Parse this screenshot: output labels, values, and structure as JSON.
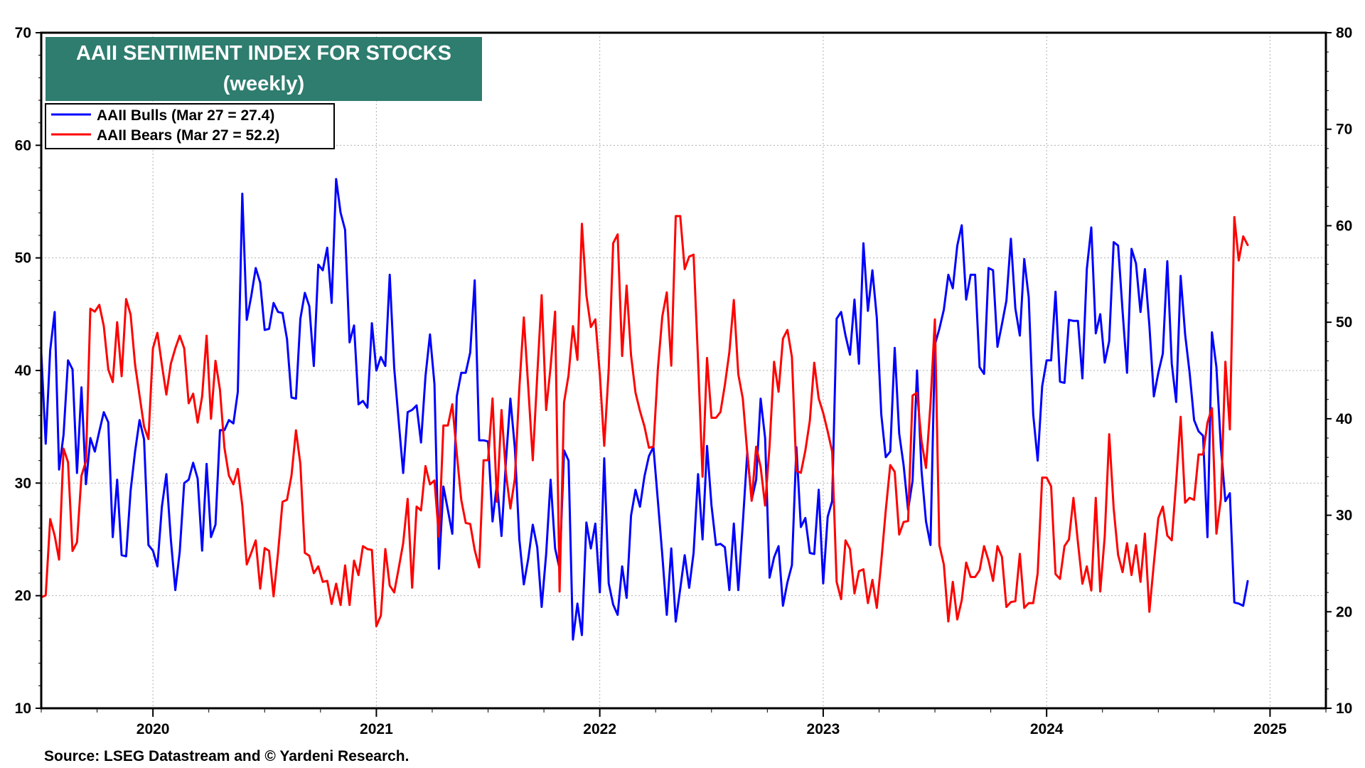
{
  "chart_data": {
    "type": "line",
    "title": "AAII SENTIMENT INDEX FOR STOCKS",
    "subtitle": "(weekly)",
    "source": "Source: LSEG Datastream and © Yardeni Research.",
    "grid": true,
    "legend_position": "top-left",
    "x_range": [
      2019.5,
      2025.25
    ],
    "x_tick_labels": [
      "2020",
      "2021",
      "2022",
      "2023",
      "2024",
      "2025"
    ],
    "x_tick_values": [
      2020,
      2021,
      2022,
      2023,
      2024,
      2025
    ],
    "y_left": {
      "range": [
        10,
        70
      ],
      "ticks": [
        10,
        20,
        30,
        40,
        50,
        60,
        70
      ]
    },
    "y_right": {
      "range": [
        10,
        80
      ],
      "ticks": [
        10,
        20,
        30,
        40,
        50,
        60,
        70,
        80
      ]
    },
    "colors": {
      "bulls": "#0000ff",
      "bears": "#ff0000",
      "title_bg": "#2e7d6f"
    },
    "series": [
      {
        "name": "AAII Bulls (Mar 27 = 27.4)",
        "axis": "left",
        "color": "#0000ff",
        "x_start": 2019.5,
        "x_step": 0.02,
        "values": [
          41.6,
          33.5,
          41.8,
          45.2,
          31.2,
          34.3,
          40.9,
          40.1,
          30.9,
          38.5,
          29.9,
          34.0,
          32.8,
          34.6,
          36.3,
          35.4,
          25.2,
          30.3,
          23.6,
          23.5,
          29.3,
          32.8,
          35.6,
          33.9,
          24.5,
          24.0,
          22.6,
          27.9,
          30.8,
          25.0,
          20.5,
          23.9,
          30.0,
          30.3,
          31.8,
          30.4,
          24.0,
          31.7,
          25.2,
          26.3,
          34.7,
          34.7,
          35.6,
          35.3,
          38.1,
          55.7,
          44.5,
          46.6,
          49.1,
          47.8,
          43.6,
          43.7,
          46.0,
          45.2,
          45.1,
          42.8,
          37.6,
          37.5,
          44.6,
          46.9,
          45.7,
          40.4,
          49.4,
          48.9,
          50.9,
          46.0,
          57.0,
          54.0,
          52.5,
          42.5,
          44.0,
          37.0,
          37.3,
          36.7,
          44.2,
          40.0,
          41.2,
          40.4,
          48.5,
          40.2,
          35.5,
          30.9,
          36.3,
          36.5,
          36.9,
          33.6,
          39.5,
          43.2,
          38.8,
          22.4,
          29.7,
          27.6,
          25.5,
          37.7,
          39.8,
          39.8,
          41.6,
          48.0,
          33.8,
          33.8,
          33.7,
          26.6,
          30.0,
          25.3,
          32.0,
          37.5,
          33.1,
          25.0,
          21.0,
          23.3,
          26.3,
          24.3,
          19.0,
          23.7,
          30.3,
          24.2,
          22.4,
          32.9,
          32.0,
          16.1,
          19.3,
          16.5,
          26.5,
          24.2,
          26.4,
          20.3,
          32.2,
          21.1,
          19.2,
          18.3,
          22.6,
          19.8,
          27.1,
          29.4,
          27.9,
          30.6,
          32.4,
          33.2,
          28.4,
          23.6,
          18.3,
          24.2,
          17.7,
          20.6,
          23.6,
          20.7,
          23.8,
          30.8,
          25.0,
          33.3,
          28.0,
          24.5,
          24.6,
          24.3,
          20.5,
          26.4,
          20.5,
          26.4,
          32.7,
          28.5,
          30.3,
          37.5,
          34.0,
          21.6,
          23.4,
          24.4,
          19.1,
          21.2,
          22.7,
          33.2,
          26.1,
          26.9,
          23.8,
          23.7,
          29.4,
          21.1,
          27.0,
          28.4,
          44.6,
          45.2,
          43.1,
          41.4,
          46.3,
          40.6,
          51.3,
          45.3,
          48.9,
          44.7,
          36.1,
          32.3,
          32.8,
          42.0,
          34.4,
          31.6,
          27.6,
          30.2,
          40.0,
          31.1,
          26.6,
          24.5,
          42.3,
          43.7,
          45.4,
          48.5,
          47.3,
          51.1,
          52.9,
          46.3,
          48.5,
          48.5,
          40.3,
          39.7,
          49.1,
          48.9,
          42.1,
          44.1,
          46.2,
          51.7,
          45.5,
          43.1,
          49.9,
          46.5,
          36.1,
          32.0,
          38.6,
          40.9,
          40.9,
          47.0,
          39.0,
          38.9,
          44.5,
          44.4,
          44.4,
          39.3,
          49.0,
          52.7,
          43.3,
          45.0,
          40.7,
          42.6,
          51.4,
          51.1,
          45.3,
          39.8,
          50.8,
          49.5,
          45.2,
          49.0,
          44.0,
          37.7,
          39.8,
          41.5,
          49.7,
          40.6,
          37.2,
          48.4,
          43.2,
          39.8,
          35.6,
          34.6,
          34.2,
          25.2,
          43.4,
          40.3,
          33.2,
          28.4,
          29.1,
          19.4,
          19.3,
          19.1,
          21.3
        ]
      },
      {
        "name": "AAII Bears (Mar 27 = 52.2)",
        "axis": "right",
        "color": "#ff0000",
        "x_start": 2019.5,
        "x_step": 0.02,
        "values": [
          21.5,
          21.7,
          29.6,
          27.9,
          25.4,
          36.9,
          35.5,
          26.3,
          27.2,
          34.1,
          35.6,
          51.4,
          51.1,
          51.8,
          49.6,
          45.1,
          43.8,
          50.0,
          44.4,
          52.4,
          50.8,
          45.6,
          42.4,
          39.2,
          37.9,
          47.3,
          48.9,
          45.6,
          42.5,
          45.7,
          47.3,
          48.6,
          47.3,
          41.6,
          42.6,
          39.6,
          42.3,
          48.6,
          40.0,
          46.0,
          43.0,
          37.0,
          34.1,
          33.2,
          34.8,
          31.0,
          24.9,
          26.1,
          27.4,
          22.4,
          26.6,
          26.3,
          21.6,
          26.1,
          31.4,
          31.6,
          34.1,
          38.8,
          35.3,
          26.1,
          25.8,
          24.0,
          24.7,
          23.1,
          23.2,
          20.8,
          22.9,
          20.7,
          24.8,
          20.7,
          25.3,
          23.8,
          26.8,
          26.5,
          26.4,
          18.5,
          19.6,
          26.5,
          22.7,
          22.0,
          24.5,
          27.1,
          31.7,
          22.5,
          30.9,
          30.5,
          35.1,
          33.2,
          33.6,
          27.8,
          39.3,
          39.3,
          41.5,
          36.4,
          31.6,
          29.2,
          29.1,
          26.4,
          24.6,
          35.7,
          35.7,
          42.1,
          31.4,
          40.9,
          34.3,
          30.7,
          33.8,
          43.2,
          50.5,
          43.2,
          35.7,
          44.5,
          52.8,
          40.9,
          45.4,
          51.1,
          22.1,
          41.7,
          44.5,
          49.6,
          46.1,
          60.2,
          52.8,
          49.5,
          50.3,
          44.6,
          37.2,
          45.1,
          58.2,
          59.1,
          46.5,
          53.8,
          46.6,
          42.7,
          40.8,
          39.2,
          37.0,
          37.1,
          45.2,
          50.6,
          53.1,
          45.5,
          61.0,
          61.0,
          55.5,
          56.8,
          57.0,
          46.0,
          34.0,
          46.3,
          40.1,
          40.1,
          40.7,
          43.5,
          46.9,
          52.3,
          44.6,
          42.1,
          36.5,
          31.5,
          37.1,
          35.0,
          31.0,
          37.2,
          45.9,
          42.8,
          48.3,
          49.2,
          46.4,
          34.6,
          34.4,
          36.7,
          39.8,
          45.8,
          42.1,
          40.6,
          38.7,
          36.6,
          23.1,
          21.3,
          27.4,
          26.5,
          21.9,
          24.2,
          24.4,
          20.9,
          23.3,
          20.4,
          25.2,
          30.5,
          35.2,
          34.5,
          28.0,
          29.3,
          29.4,
          42.4,
          42.7,
          37.7,
          34.9,
          41.5,
          50.3,
          26.9,
          24.9,
          19.0,
          23.1,
          19.2,
          21.2,
          25.1,
          23.6,
          23.6,
          24.3,
          26.8,
          25.3,
          23.2,
          26.8,
          25.7,
          20.5,
          21.0,
          21.1,
          26.0,
          20.4,
          20.9,
          20.9,
          24.0,
          33.9,
          33.9,
          33.0,
          23.9,
          23.4,
          26.8,
          27.5,
          31.8,
          27.2,
          22.9,
          24.7,
          22.2,
          31.8,
          22.1,
          27.8,
          38.4,
          30.7,
          25.9,
          24.1,
          27.1,
          23.8,
          26.9,
          23.1,
          28.1,
          20.0,
          25.0,
          29.7,
          30.9,
          27.9,
          27.4,
          33.5,
          40.2,
          31.3,
          31.8,
          31.6,
          36.3,
          36.3,
          39.6,
          41.1,
          28.1,
          31.7,
          45.9,
          38.9,
          60.9,
          56.4,
          58.9,
          58.0
        ]
      }
    ]
  }
}
